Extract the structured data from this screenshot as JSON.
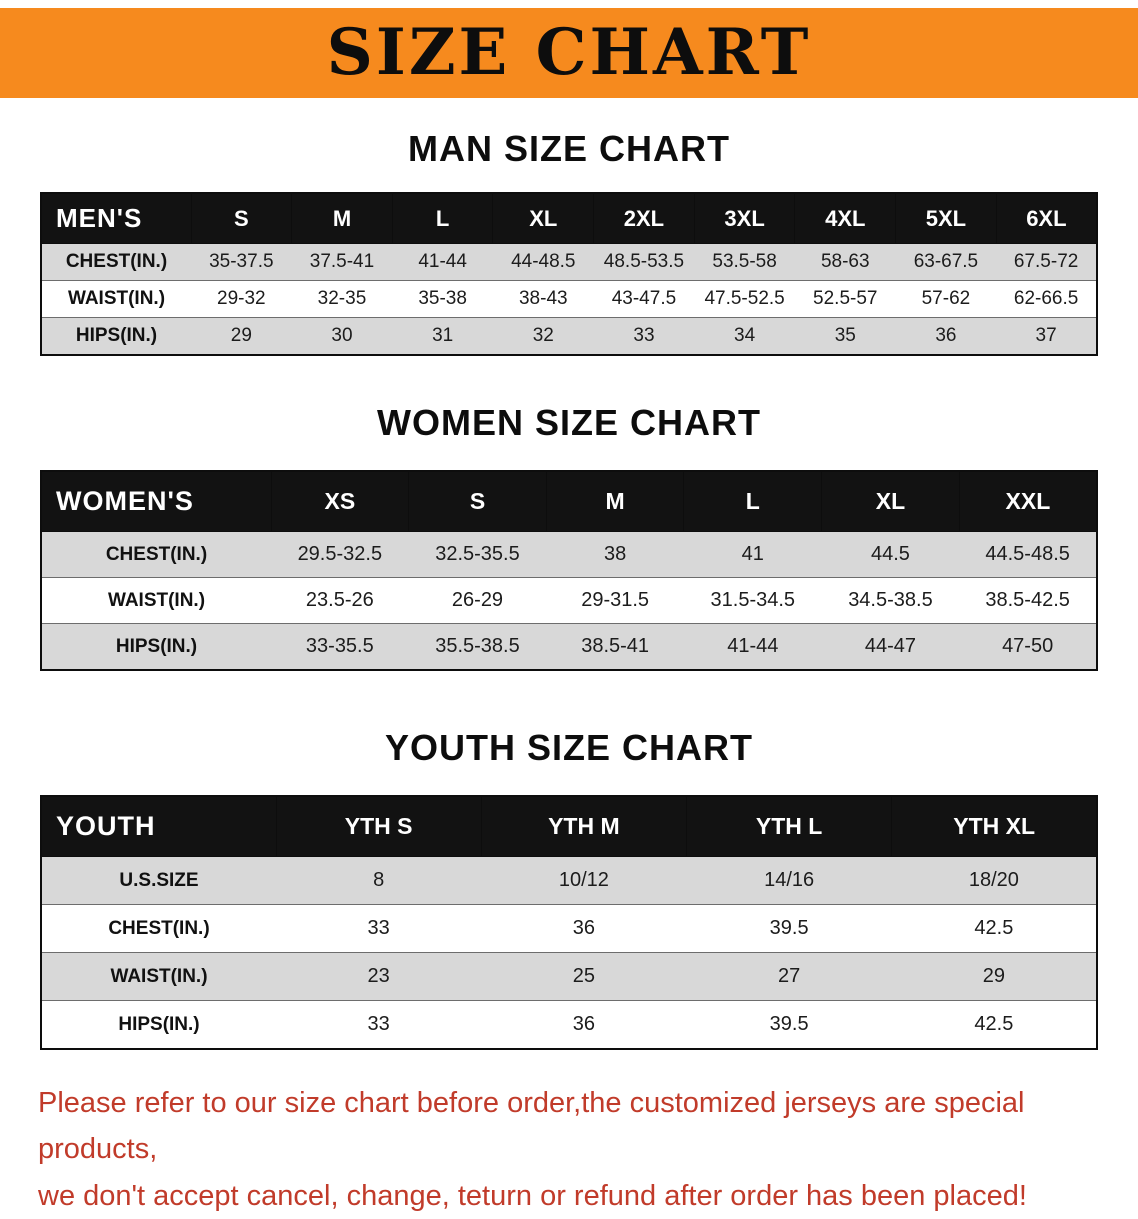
{
  "banner": {
    "title": "SIZE CHART"
  },
  "colors": {
    "banner_bg": "#f68a1e",
    "header_bg": "#121212",
    "row_alt": "#d8d8d8",
    "note_red": "#c13b2a"
  },
  "sections": [
    {
      "heading": "MAN SIZE CHART",
      "table": {
        "header": [
          "MEN'S",
          "S",
          "M",
          "L",
          "XL",
          "2XL",
          "3XL",
          "4XL",
          "5XL",
          "6XL"
        ],
        "rows": [
          [
            "CHEST(IN.)",
            "35-37.5",
            "37.5-41",
            "41-44",
            "44-48.5",
            "48.5-53.5",
            "53.5-58",
            "58-63",
            "63-67.5",
            "67.5-72"
          ],
          [
            "WAIST(IN.)",
            "29-32",
            "32-35",
            "35-38",
            "38-43",
            "43-47.5",
            "47.5-52.5",
            "52.5-57",
            "57-62",
            "62-66.5"
          ],
          [
            "HIPS(IN.)",
            "29",
            "30",
            "31",
            "32",
            "33",
            "34",
            "35",
            "36",
            "37"
          ]
        ]
      }
    },
    {
      "heading": "WOMEN SIZE CHART",
      "table": {
        "header": [
          "WOMEN'S",
          "XS",
          "S",
          "M",
          "L",
          "XL",
          "XXL"
        ],
        "rows": [
          [
            "CHEST(IN.)",
            "29.5-32.5",
            "32.5-35.5",
            "38",
            "41",
            "44.5",
            "44.5-48.5"
          ],
          [
            "WAIST(IN.)",
            "23.5-26",
            "26-29",
            "29-31.5",
            "31.5-34.5",
            "34.5-38.5",
            "38.5-42.5"
          ],
          [
            "HIPS(IN.)",
            "33-35.5",
            "35.5-38.5",
            "38.5-41",
            "41-44",
            "44-47",
            "47-50"
          ]
        ]
      }
    },
    {
      "heading": "YOUTH SIZE CHART",
      "table": {
        "header": [
          "YOUTH",
          "YTH S",
          "YTH M",
          "YTH L",
          "YTH XL"
        ],
        "rows": [
          [
            "U.S.SIZE",
            "8",
            "10/12",
            "14/16",
            "18/20"
          ],
          [
            "CHEST(IN.)",
            "33",
            "36",
            "39.5",
            "42.5"
          ],
          [
            "WAIST(IN.)",
            "23",
            "25",
            "27",
            "29"
          ],
          [
            "HIPS(IN.)",
            "33",
            "36",
            "39.5",
            "42.5"
          ]
        ]
      }
    }
  ],
  "note": {
    "line1": "Please refer to our size chart before order,the customized jerseys are special products,",
    "line2": "we don't accept cancel, change, teturn or refund after order has been placed!"
  }
}
